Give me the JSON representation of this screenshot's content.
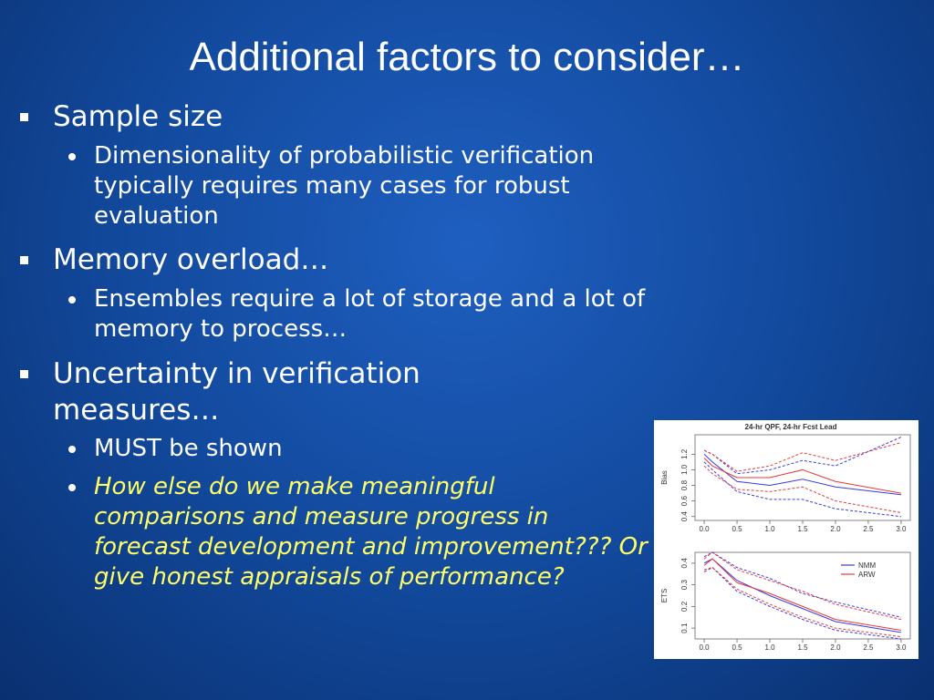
{
  "slide": {
    "title": "Additional factors to consider…",
    "bullets": [
      {
        "text": "Sample size",
        "sub": [
          "Dimensionality of probabilistic verification typically requires many cases for robust evaluation"
        ]
      },
      {
        "text": "Memory overload…",
        "sub": [
          "Ensembles require a lot of storage and a lot of memory to process…"
        ]
      },
      {
        "text": "Uncertainty in verification measures…",
        "sub": [
          "MUST be shown",
          "How else do we make meaningful comparisons and measure progress in forecast development and improvement??? Or give honest appraisals of performance?"
        ]
      }
    ]
  },
  "figure": {
    "title": "24-hr QPF, 24-hr Fcst Lead",
    "series": [
      {
        "name": "NMM",
        "color": "#3a3ae8"
      },
      {
        "name": "ARW",
        "color": "#e83a3a"
      }
    ],
    "x": [
      0,
      0.125,
      0.5,
      1,
      1.5,
      2,
      3
    ],
    "xlim": [
      -0.14,
      3.14
    ],
    "xticks": [
      {
        "value": 0,
        "label": "0.0"
      },
      0.5,
      {
        "value": 1,
        "label": "1.0"
      },
      1.5,
      {
        "value": 2,
        "label": "2.0"
      },
      2.5,
      {
        "value": 3,
        "label": "3.0"
      }
    ],
    "panels": [
      {
        "ylabel": "Bias",
        "ylim": [
          0.35,
          1.45
        ],
        "yticks": [
          0.4,
          0.6,
          0.8,
          {
            "value": 1,
            "label": "1.0"
          },
          1.2
        ],
        "values": [
          [
            1.2,
            1.1,
            0.85,
            0.8,
            0.88,
            0.78,
            0.68
          ],
          [
            1.15,
            1.05,
            0.9,
            0.9,
            1.0,
            0.85,
            0.7
          ]
        ],
        "upper": [
          [
            1.25,
            1.2,
            0.95,
            1.0,
            1.12,
            1.05,
            1.42
          ],
          [
            1.25,
            1.2,
            0.98,
            1.05,
            1.22,
            1.12,
            1.35
          ]
        ],
        "lower": [
          [
            1.1,
            1.0,
            0.72,
            0.62,
            0.62,
            0.5,
            0.4
          ],
          [
            1.05,
            0.95,
            0.75,
            0.72,
            0.78,
            0.6,
            0.45
          ]
        ]
      },
      {
        "ylabel": "ETS",
        "ylim": [
          0.05,
          0.45
        ],
        "legend": true,
        "yticks": [
          0.1,
          0.2,
          0.3,
          0.4
        ],
        "values": [
          [
            0.4,
            0.42,
            0.32,
            0.25,
            0.19,
            0.13,
            0.08
          ],
          [
            0.39,
            0.42,
            0.31,
            0.26,
            0.2,
            0.14,
            0.09
          ]
        ],
        "upper": [
          [
            0.43,
            0.45,
            0.38,
            0.33,
            0.26,
            0.22,
            0.15
          ],
          [
            0.42,
            0.45,
            0.37,
            0.32,
            0.27,
            0.21,
            0.14
          ]
        ],
        "lower": [
          [
            0.36,
            0.38,
            0.27,
            0.2,
            0.14,
            0.09,
            0.05
          ],
          [
            0.37,
            0.38,
            0.28,
            0.21,
            0.15,
            0.1,
            0.06
          ]
        ]
      }
    ]
  }
}
